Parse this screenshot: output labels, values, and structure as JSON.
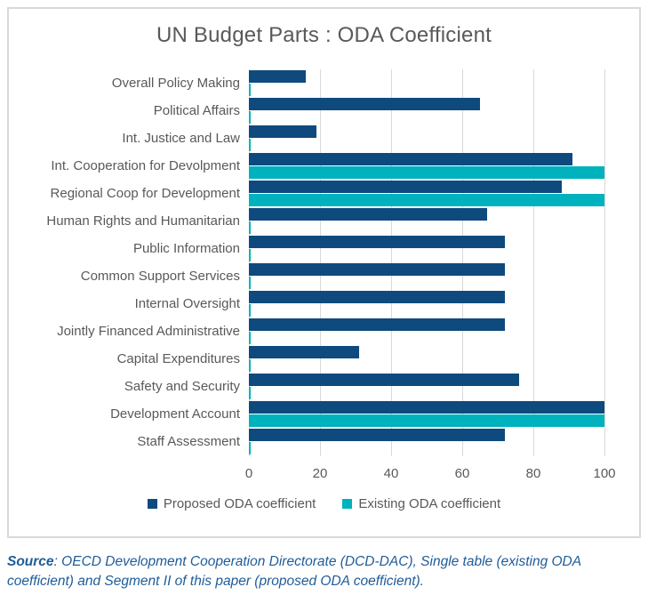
{
  "chart_data": {
    "type": "bar",
    "orientation": "horizontal",
    "title": "UN Budget Parts : ODA Coefficient",
    "categories": [
      "Overall Policy Making",
      "Political Affairs",
      "Int. Justice and Law",
      "Int. Cooperation for Devolpment",
      "Regional Coop for Development",
      "Human Rights and Humanitarian",
      "Public Information",
      "Common Support Services",
      "Internal Oversight",
      "Jointly Financed Administrative",
      "Capital Expenditures",
      "Safety and Security",
      "Development Account",
      "Staff Assessment"
    ],
    "series": [
      {
        "name": "Proposed ODA coefficient",
        "color": "#0e4a7d",
        "values": [
          16,
          65,
          19,
          91,
          88,
          67,
          72,
          72,
          72,
          72,
          31,
          76,
          100,
          72
        ]
      },
      {
        "name": "Existing ODA coefficient",
        "color": "#00b2bd",
        "values": [
          0,
          0,
          0,
          100,
          100,
          0,
          0,
          0,
          0,
          0,
          0,
          0,
          100,
          0
        ]
      }
    ],
    "x_ticks": [
      0,
      20,
      40,
      60,
      80,
      100
    ],
    "xlim": [
      0,
      100
    ],
    "grid": "vertical",
    "legend_position": "bottom",
    "gridline_color": "#d9d9d9",
    "text_color": "#595959"
  },
  "source_note": {
    "label": "Source",
    "text": ": OECD Development Cooperation Directorate (DCD-DAC), Single table (existing ODA coefficient) and Segment II of this paper (proposed ODA coefficient)."
  }
}
